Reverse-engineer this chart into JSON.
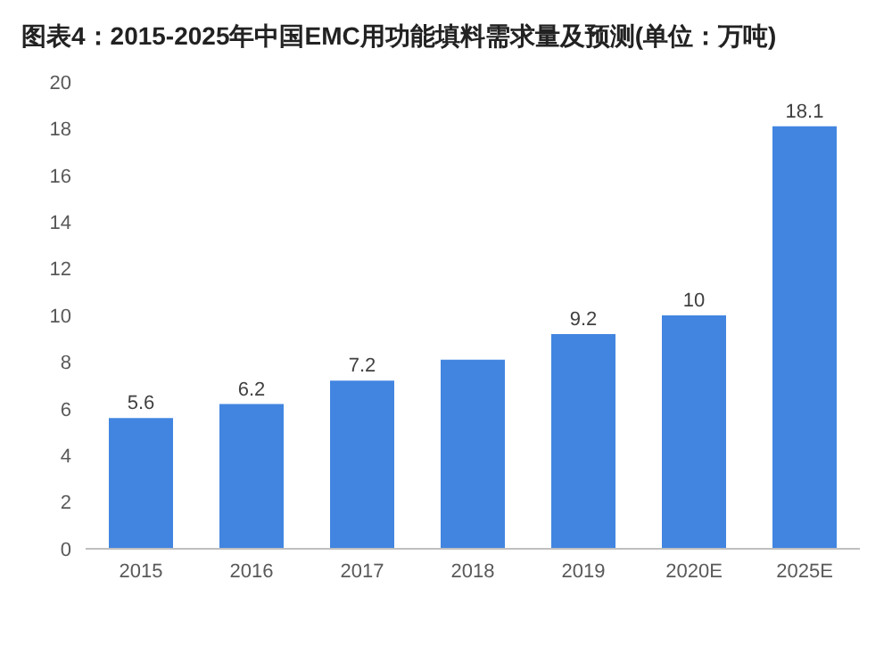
{
  "chart_data": {
    "type": "bar",
    "title": "图表4：2015-2025年中国EMC用功能填料需求量及预测(单位：万吨)",
    "categories": [
      "2015",
      "2016",
      "2017",
      "2018",
      "2019",
      "2020E",
      "2025E"
    ],
    "values": [
      5.6,
      6.2,
      7.2,
      8.1,
      9.2,
      10,
      18.1
    ],
    "value_labels": [
      "5.6",
      "6.2",
      "7.2",
      null,
      "9.2",
      "10",
      "18.1"
    ],
    "color": "#4285e0",
    "ylim": [
      0,
      20
    ],
    "yticks": [
      0,
      2,
      4,
      6,
      8,
      10,
      12,
      14,
      16,
      18,
      20
    ],
    "grid": false,
    "legend": false
  }
}
